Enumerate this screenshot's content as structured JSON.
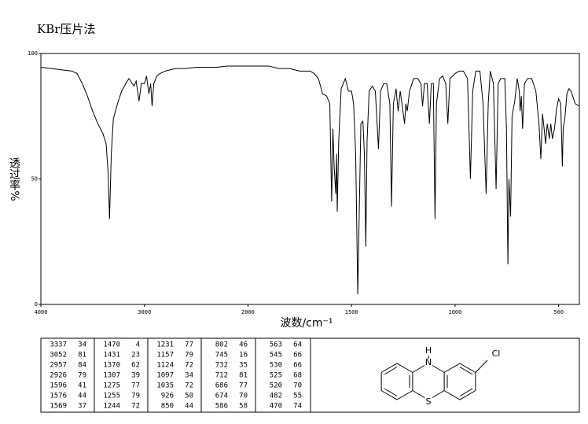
{
  "chart_data": {
    "type": "line",
    "title": "KBr压片法",
    "xlabel": "波数/cm⁻¹",
    "ylabel": "透过率%",
    "xlim": [
      4000,
      400
    ],
    "x_scale_break": 2000,
    "ylim": [
      0,
      100
    ],
    "xticks": [
      4000,
      3000,
      2000,
      1500,
      1000,
      500
    ],
    "yticks": [
      0,
      50,
      100
    ],
    "grid": false,
    "color": "#000000",
    "x": [
      4000,
      3900,
      3800,
      3700,
      3650,
      3600,
      3550,
      3500,
      3450,
      3400,
      3370,
      3350,
      3337,
      3320,
      3300,
      3260,
      3220,
      3180,
      3150,
      3100,
      3080,
      3052,
      3030,
      3000,
      2980,
      2957,
      2940,
      2926,
      2910,
      2880,
      2850,
      2800,
      2700,
      2600,
      2500,
      2400,
      2300,
      2200,
      2100,
      2000,
      1900,
      1850,
      1800,
      1750,
      1700,
      1680,
      1660,
      1640,
      1620,
      1605,
      1596,
      1590,
      1584,
      1576,
      1572,
      1569,
      1562,
      1550,
      1530,
      1515,
      1500,
      1490,
      1480,
      1470,
      1462,
      1455,
      1445,
      1438,
      1431,
      1425,
      1415,
      1400,
      1385,
      1370,
      1360,
      1345,
      1330,
      1315,
      1307,
      1298,
      1285,
      1275,
      1265,
      1255,
      1244,
      1238,
      1231,
      1220,
      1200,
      1180,
      1165,
      1157,
      1148,
      1135,
      1124,
      1115,
      1105,
      1097,
      1090,
      1075,
      1060,
      1045,
      1035,
      1025,
      1000,
      980,
      960,
      940,
      926,
      915,
      900,
      880,
      865,
      850,
      840,
      830,
      815,
      802,
      792,
      780,
      760,
      752,
      745,
      740,
      732,
      725,
      712,
      700,
      690,
      686,
      680,
      674,
      665,
      650,
      630,
      610,
      595,
      586,
      578,
      570,
      563,
      555,
      545,
      538,
      530,
      525,
      520,
      510,
      500,
      490,
      482,
      478,
      470,
      460,
      450,
      440,
      420,
      400
    ],
    "values": [
      94.5,
      94,
      93.5,
      93,
      92,
      88,
      83,
      77,
      72,
      68,
      64,
      52,
      34,
      60,
      74,
      80,
      85,
      88,
      90,
      87,
      89,
      81,
      88,
      88,
      91,
      84,
      88,
      79,
      88,
      91,
      92,
      93,
      94,
      94,
      94.5,
      94.5,
      94.5,
      95,
      95,
      95,
      95,
      94,
      94,
      93,
      93,
      92,
      90,
      84,
      83,
      80,
      41,
      70,
      55,
      44,
      60,
      37,
      65,
      86,
      90,
      85,
      85,
      80,
      60,
      4,
      40,
      72,
      73,
      60,
      23,
      65,
      85,
      87,
      85,
      62,
      85,
      88,
      88,
      80,
      39,
      80,
      86,
      77,
      85,
      79,
      72,
      80,
      77,
      85,
      90,
      90,
      88,
      79,
      88,
      88,
      72,
      88,
      88,
      34,
      80,
      90,
      91,
      88,
      72,
      90,
      92,
      93,
      93,
      90,
      50,
      85,
      93,
      93,
      80,
      44,
      80,
      93,
      88,
      46,
      88,
      90,
      90,
      70,
      16,
      50,
      35,
      75,
      81,
      90,
      85,
      77,
      83,
      70,
      88,
      90,
      90,
      85,
      72,
      58,
      76,
      70,
      64,
      72,
      66,
      72,
      66,
      68,
      70,
      78,
      82,
      80,
      55,
      70,
      74,
      84,
      86,
      85,
      80,
      79
    ]
  },
  "peak_table": [
    [
      3337,
      34
    ],
    [
      3052,
      81
    ],
    [
      2957,
      84
    ],
    [
      2926,
      79
    ],
    [
      1596,
      41
    ],
    [
      1576,
      44
    ],
    [
      1569,
      37
    ],
    [
      1470,
      4
    ],
    [
      1431,
      23
    ],
    [
      1370,
      62
    ],
    [
      1307,
      39
    ],
    [
      1275,
      77
    ],
    [
      1255,
      79
    ],
    [
      1244,
      72
    ],
    [
      1231,
      77
    ],
    [
      1157,
      79
    ],
    [
      1124,
      72
    ],
    [
      1097,
      34
    ],
    [
      1035,
      72
    ],
    [
      926,
      50
    ],
    [
      850,
      44
    ],
    [
      802,
      46
    ],
    [
      745,
      16
    ],
    [
      732,
      35
    ],
    [
      712,
      81
    ],
    [
      686,
      77
    ],
    [
      674,
      70
    ],
    [
      586,
      58
    ],
    [
      563,
      64
    ],
    [
      545,
      66
    ],
    [
      530,
      66
    ],
    [
      525,
      68
    ],
    [
      520,
      70
    ],
    [
      482,
      55
    ],
    [
      470,
      74
    ]
  ],
  "structure": {
    "atoms": [
      "H",
      "N",
      "S",
      "Cl"
    ]
  }
}
